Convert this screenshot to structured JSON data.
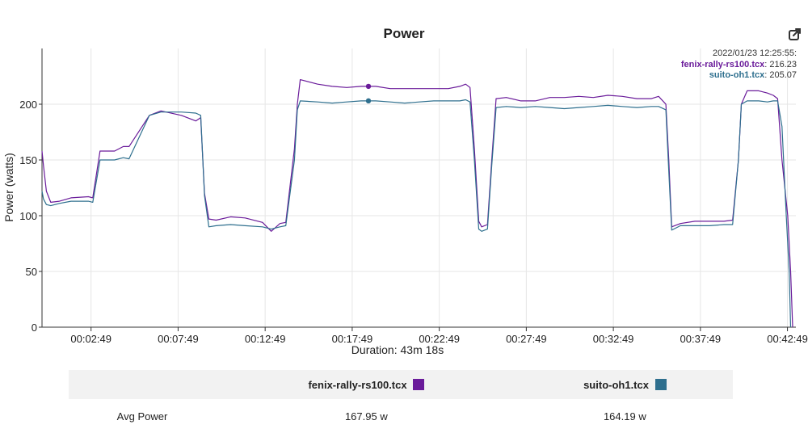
{
  "title": "Power",
  "tooltip": {
    "timestamp": "2022/01/23 12:25:55:",
    "entries": [
      {
        "name": "fenix-rally-rs100.tcx",
        "value": ": 216.23"
      },
      {
        "name": "suito-oh1.tcx",
        "value": ": 205.07"
      }
    ]
  },
  "summary": {
    "columns": [
      {
        "label": "fenix-rally-rs100.tcx",
        "color": "#6a1b9a"
      },
      {
        "label": "suito-oh1.tcx",
        "color": "#2e6f8e"
      }
    ],
    "rows": [
      {
        "metric": "Avg Power",
        "values": [
          "167.95 w",
          "164.19 w"
        ]
      }
    ]
  },
  "chart_data": {
    "type": "line",
    "title": "Power",
    "xlabel": "Duration: 43m 18s",
    "ylabel": "Power (watts)",
    "x_unit": "seconds",
    "xlim": [
      0,
      2598
    ],
    "ylim": [
      0,
      250
    ],
    "yticks": [
      0,
      50,
      100,
      150,
      200
    ],
    "xticks": [
      {
        "t": 169,
        "label": "00:02:49"
      },
      {
        "t": 469,
        "label": "00:07:49"
      },
      {
        "t": 769,
        "label": "00:12:49"
      },
      {
        "t": 1069,
        "label": "00:17:49"
      },
      {
        "t": 1369,
        "label": "00:22:49"
      },
      {
        "t": 1669,
        "label": "00:27:49"
      },
      {
        "t": 1969,
        "label": "00:32:49"
      },
      {
        "t": 2269,
        "label": "00:37:49"
      },
      {
        "t": 2569,
        "label": "00:42:49"
      }
    ],
    "grid": true,
    "hover_marker_t": 1125,
    "series": [
      {
        "name": "fenix-rally-rs100.tcx",
        "color": "#6a1b9a",
        "points": [
          [
            0,
            158
          ],
          [
            5,
            145
          ],
          [
            15,
            122
          ],
          [
            30,
            112
          ],
          [
            60,
            113
          ],
          [
            100,
            116
          ],
          [
            160,
            117
          ],
          [
            175,
            116
          ],
          [
            200,
            158
          ],
          [
            250,
            158
          ],
          [
            280,
            162
          ],
          [
            300,
            162
          ],
          [
            370,
            190
          ],
          [
            410,
            194
          ],
          [
            480,
            190
          ],
          [
            530,
            185
          ],
          [
            547,
            188
          ],
          [
            560,
            120
          ],
          [
            575,
            97
          ],
          [
            600,
            96
          ],
          [
            650,
            99
          ],
          [
            700,
            98
          ],
          [
            760,
            94
          ],
          [
            790,
            86
          ],
          [
            820,
            93
          ],
          [
            840,
            94
          ],
          [
            870,
            160
          ],
          [
            880,
            200
          ],
          [
            890,
            222
          ],
          [
            950,
            218
          ],
          [
            1000,
            216
          ],
          [
            1050,
            215
          ],
          [
            1100,
            216
          ],
          [
            1150,
            216
          ],
          [
            1200,
            214
          ],
          [
            1250,
            214
          ],
          [
            1300,
            214
          ],
          [
            1350,
            214
          ],
          [
            1400,
            214
          ],
          [
            1440,
            216
          ],
          [
            1460,
            218
          ],
          [
            1475,
            215
          ],
          [
            1490,
            160
          ],
          [
            1505,
            95
          ],
          [
            1515,
            90
          ],
          [
            1535,
            92
          ],
          [
            1550,
            150
          ],
          [
            1565,
            205
          ],
          [
            1600,
            206
          ],
          [
            1650,
            203
          ],
          [
            1700,
            203
          ],
          [
            1750,
            206
          ],
          [
            1800,
            206
          ],
          [
            1850,
            207
          ],
          [
            1900,
            206
          ],
          [
            1950,
            208
          ],
          [
            2000,
            207
          ],
          [
            2050,
            205
          ],
          [
            2100,
            205
          ],
          [
            2125,
            207
          ],
          [
            2150,
            200
          ],
          [
            2160,
            150
          ],
          [
            2170,
            90
          ],
          [
            2200,
            93
          ],
          [
            2250,
            95
          ],
          [
            2300,
            95
          ],
          [
            2350,
            95
          ],
          [
            2380,
            96
          ],
          [
            2400,
            150
          ],
          [
            2410,
            200
          ],
          [
            2430,
            212
          ],
          [
            2470,
            212
          ],
          [
            2500,
            210
          ],
          [
            2520,
            208
          ],
          [
            2535,
            205
          ],
          [
            2550,
            150
          ],
          [
            2570,
            100
          ],
          [
            2580,
            50
          ],
          [
            2587,
            0
          ]
        ]
      },
      {
        "name": "suito-oh1.tcx",
        "color": "#2e6f8e",
        "points": [
          [
            0,
            122
          ],
          [
            5,
            115
          ],
          [
            15,
            110
          ],
          [
            30,
            109
          ],
          [
            60,
            111
          ],
          [
            100,
            113
          ],
          [
            160,
            113
          ],
          [
            175,
            112
          ],
          [
            200,
            150
          ],
          [
            250,
            150
          ],
          [
            280,
            152
          ],
          [
            300,
            151
          ],
          [
            370,
            190
          ],
          [
            410,
            193
          ],
          [
            480,
            193
          ],
          [
            530,
            192
          ],
          [
            547,
            190
          ],
          [
            560,
            118
          ],
          [
            575,
            90
          ],
          [
            600,
            91
          ],
          [
            650,
            92
          ],
          [
            700,
            91
          ],
          [
            760,
            90
          ],
          [
            790,
            88
          ],
          [
            820,
            90
          ],
          [
            840,
            91
          ],
          [
            870,
            150
          ],
          [
            880,
            195
          ],
          [
            890,
            203
          ],
          [
            950,
            202
          ],
          [
            1000,
            201
          ],
          [
            1050,
            202
          ],
          [
            1100,
            203
          ],
          [
            1150,
            203
          ],
          [
            1200,
            202
          ],
          [
            1250,
            201
          ],
          [
            1300,
            202
          ],
          [
            1350,
            203
          ],
          [
            1400,
            203
          ],
          [
            1440,
            203
          ],
          [
            1460,
            204
          ],
          [
            1475,
            202
          ],
          [
            1490,
            150
          ],
          [
            1505,
            88
          ],
          [
            1515,
            86
          ],
          [
            1535,
            88
          ],
          [
            1550,
            145
          ],
          [
            1565,
            197
          ],
          [
            1600,
            198
          ],
          [
            1650,
            197
          ],
          [
            1700,
            198
          ],
          [
            1750,
            197
          ],
          [
            1800,
            196
          ],
          [
            1850,
            197
          ],
          [
            1900,
            198
          ],
          [
            1950,
            199
          ],
          [
            2000,
            198
          ],
          [
            2050,
            197
          ],
          [
            2100,
            198
          ],
          [
            2125,
            198
          ],
          [
            2150,
            195
          ],
          [
            2160,
            140
          ],
          [
            2170,
            87
          ],
          [
            2200,
            91
          ],
          [
            2250,
            91
          ],
          [
            2300,
            91
          ],
          [
            2350,
            92
          ],
          [
            2380,
            92
          ],
          [
            2400,
            150
          ],
          [
            2410,
            200
          ],
          [
            2430,
            203
          ],
          [
            2470,
            203
          ],
          [
            2500,
            202
          ],
          [
            2520,
            203
          ],
          [
            2535,
            203
          ],
          [
            2550,
            180
          ],
          [
            2565,
            100
          ],
          [
            2575,
            50
          ],
          [
            2580,
            0
          ]
        ]
      }
    ]
  }
}
